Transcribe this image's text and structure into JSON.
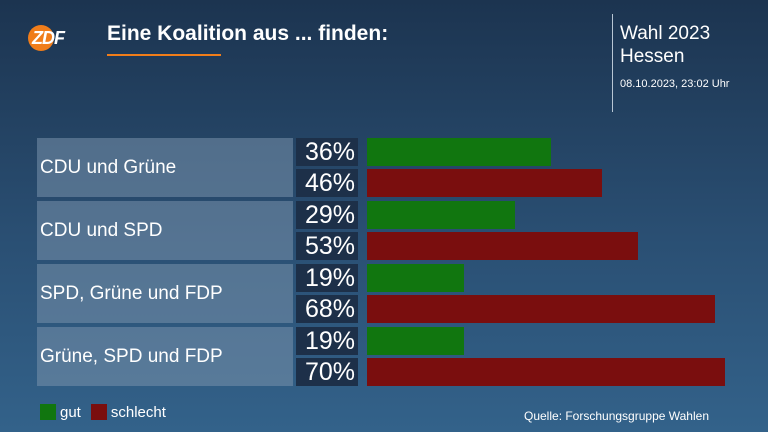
{
  "header": {
    "logo_text": "ZDF",
    "title": "Eine Koalition aus ... finden:",
    "election_line1": "Wahl 2023",
    "election_line2": "Hessen",
    "timestamp": "08.10.2023, 23:02 Uhr"
  },
  "colors": {
    "gut": "#11760f",
    "schlecht": "#7a0e0e",
    "accent": "#f07d1a"
  },
  "legend": {
    "gut": "gut",
    "schlecht": "schlecht"
  },
  "source": "Quelle: Forschungsgruppe Wahlen",
  "chart_data": {
    "type": "bar",
    "orientation": "horizontal",
    "title": "Eine Koalition aus ... finden:",
    "categories": [
      "CDU und Grüne",
      "CDU und SPD",
      "SPD, Grüne und FDP",
      "Grüne, SPD und FDP"
    ],
    "series": [
      {
        "name": "gut",
        "values": [
          36,
          29,
          19,
          19
        ]
      },
      {
        "name": "schlecht",
        "values": [
          46,
          53,
          68,
          70
        ]
      }
    ],
    "value_labels": [
      {
        "gut": "36%",
        "schlecht": "46%"
      },
      {
        "gut": "29%",
        "schlecht": "53%"
      },
      {
        "gut": "19%",
        "schlecht": "68%"
      },
      {
        "gut": "19%",
        "schlecht": "70%"
      }
    ],
    "xlim": [
      0,
      70
    ],
    "grid": false,
    "legend_position": "bottom-left"
  }
}
